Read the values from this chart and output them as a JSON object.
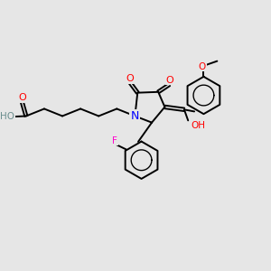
{
  "background_color": "#e6e6e6",
  "atom_colors": {
    "O": "#ff0000",
    "N": "#0000ff",
    "F": "#ff00cc",
    "C": "#000000",
    "H": "#6b8e8e"
  },
  "bond_color": "#000000",
  "bond_width": 1.4,
  "figsize": [
    3.0,
    3.0
  ],
  "dpi": 100
}
